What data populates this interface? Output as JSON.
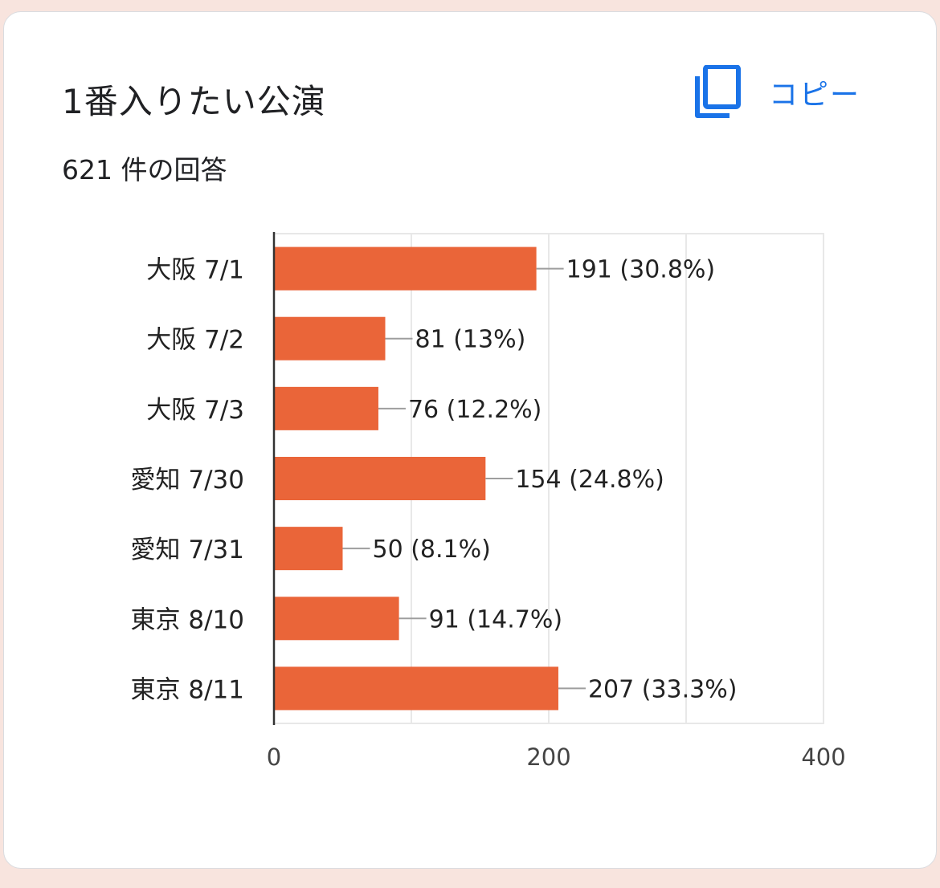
{
  "header": {
    "title": "1番入りたい公演",
    "copy_label": "コピー",
    "response_count": "621 件の回答"
  },
  "icons": {
    "copy": "copy-icon"
  },
  "colors": {
    "bar": "#ea6539",
    "accent": "#1a73e8"
  },
  "chart_data": {
    "type": "bar",
    "orientation": "horizontal",
    "categories": [
      "大阪 7/1",
      "大阪 7/2",
      "大阪 7/3",
      "愛知 7/30",
      "愛知 7/31",
      "東京 8/10",
      "東京 8/11"
    ],
    "values": [
      191,
      81,
      76,
      154,
      50,
      91,
      207
    ],
    "data_labels": [
      "191 (30.8%)",
      "81 (13%)",
      "76 (12.2%)",
      "154 (24.8%)",
      "50 (8.1%)",
      "91 (14.7%)",
      "207 (33.3%)"
    ],
    "xlim": [
      0,
      400
    ],
    "x_ticks": [
      "0",
      "200",
      "400"
    ],
    "gridlines": true,
    "title": "",
    "xlabel": "",
    "ylabel": ""
  }
}
